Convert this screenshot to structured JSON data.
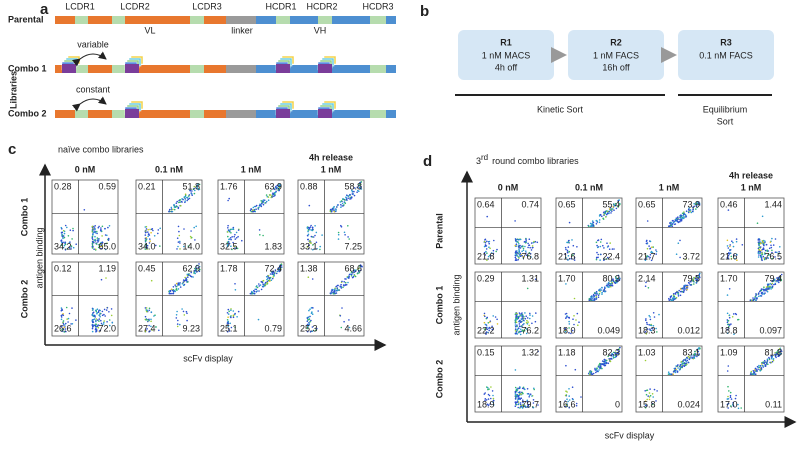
{
  "panel_a": {
    "label": "a",
    "parental": "Parental",
    "libraries": "Libraries",
    "combos": [
      "Combo 1",
      "Combo 2"
    ],
    "cdrs": [
      "LCDR1",
      "LCDR2",
      "LCDR3",
      "HCDR1",
      "HCDR2",
      "HCDR3"
    ],
    "domains": [
      "VL",
      "linker",
      "VH"
    ],
    "notes": [
      "variable",
      "constant"
    ]
  },
  "panel_b": {
    "label": "b",
    "rounds": [
      {
        "title": "R1",
        "lines": [
          "1 nM MACS",
          "4h off"
        ]
      },
      {
        "title": "R2",
        "lines": [
          "1 nM FACS",
          "16h off"
        ]
      },
      {
        "title": "R3",
        "lines": [
          "0.1 nM FACS"
        ]
      }
    ],
    "groups": [
      {
        "lines": [
          "Kinetic Sort"
        ]
      },
      {
        "lines": [
          "Equilibrium",
          "Sort"
        ]
      }
    ]
  },
  "panel_c": {
    "label": "c",
    "title": "naïve combo libraries",
    "columns": [
      [
        "0 nM"
      ],
      [
        "0.1 nM"
      ],
      [
        "1 nM"
      ],
      [
        "4h release",
        "1 nM"
      ]
    ],
    "rows": [
      "Combo 1",
      "Combo 2"
    ],
    "y_label": "antigen binding",
    "x_label": "scFv display",
    "quadrants": [
      [
        [
          "0.28",
          "0.59",
          "34.2",
          "65.0"
        ],
        [
          "0.21",
          "51.8",
          "34.0",
          "14.0"
        ],
        [
          "1.76",
          "63.9",
          "32.5",
          "1.83"
        ],
        [
          "0.88",
          "58.8",
          "33.1",
          "7.25"
        ]
      ],
      [
        [
          "0.12",
          "1.19",
          "26.6",
          "72.0"
        ],
        [
          "0.45",
          "62.9",
          "27.4",
          "9.23"
        ],
        [
          "1.78",
          "72.4",
          "25.1",
          "0.79"
        ],
        [
          "1.38",
          "68.6",
          "25.3",
          "4.66"
        ]
      ]
    ]
  },
  "panel_d": {
    "label": "d",
    "title_num": "3",
    "title_sup": "rd",
    "title_rest": "round combo libraries",
    "columns": [
      [
        "0 nM"
      ],
      [
        "0.1 nM"
      ],
      [
        "1 nM"
      ],
      [
        "4h release",
        "1 nM"
      ]
    ],
    "rows": [
      "Parental",
      "Combo 1",
      "Combo 2"
    ],
    "y_label": "antigen binding",
    "x_label": "scFv display",
    "quadrants": [
      [
        [
          "0.64",
          "0.74",
          "21.8",
          "76.8"
        ],
        [
          "0.65",
          "55.4",
          "21.6",
          "22.4"
        ],
        [
          "0.65",
          "73.9",
          "21.7",
          "3.72"
        ],
        [
          "0.46",
          "1.44",
          "21.6",
          "76.5"
        ]
      ],
      [
        [
          "0.29",
          "1.31",
          "22.2",
          "76.2"
        ],
        [
          "1.70",
          "80.3",
          "18.0",
          "0.049"
        ],
        [
          "2.14",
          "79.5",
          "18.3",
          "0.012"
        ],
        [
          "1.70",
          "79.4",
          "18.8",
          "0.097"
        ]
      ],
      [
        [
          "0.15",
          "1.32",
          "18.9",
          "79.7"
        ],
        [
          "1.18",
          "82.3",
          "16.6",
          "0"
        ],
        [
          "1.03",
          "83.1",
          "15.8",
          "0.024"
        ],
        [
          "1.09",
          "81.8",
          "17.0",
          "0.11"
        ]
      ]
    ]
  }
}
